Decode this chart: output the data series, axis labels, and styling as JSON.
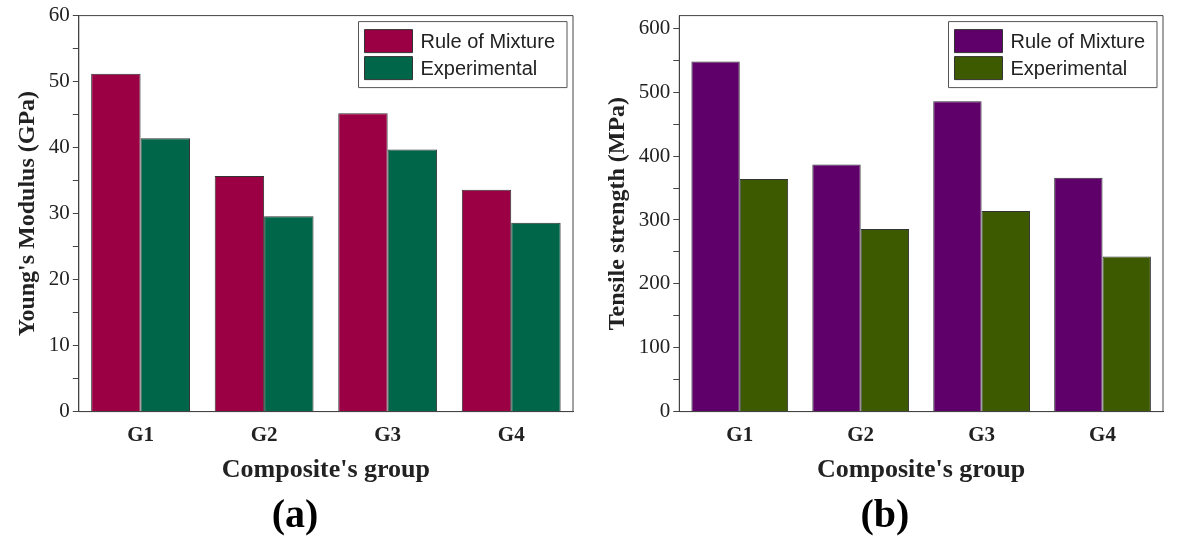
{
  "chart_data": [
    {
      "type": "bar",
      "xlabel": "Composite's group",
      "ylabel": "Young's Modulus (GPa)",
      "categories": [
        "G1",
        "G2",
        "G3",
        "G4"
      ],
      "series": [
        {
          "name": "Rule of Mixture",
          "color": "#9b0045",
          "values": [
            51.2,
            35.7,
            45.2,
            33.6
          ]
        },
        {
          "name": "Experimental",
          "color": "#00664a",
          "values": [
            41.4,
            29.6,
            39.7,
            28.6
          ]
        }
      ],
      "ylim": [
        0,
        60
      ],
      "yticks": [
        0,
        {
          "value": 5,
          "label": null
        },
        10,
        {
          "value": 15,
          "label": null
        },
        20,
        {
          "value": 25,
          "label": null
        },
        30,
        {
          "value": 35,
          "label": null
        },
        40,
        {
          "value": 45,
          "label": null
        },
        50,
        {
          "value": 55,
          "label": null
        },
        60
      ],
      "grid": false,
      "legend": "top right",
      "annotations": [
        "(a)"
      ]
    },
    {
      "type": "bar",
      "xlabel": "Composite's group",
      "ylabel": "Tensile strength (MPa)",
      "categories": [
        "G1",
        "G2",
        "G3",
        "G4"
      ],
      "series": [
        {
          "name": "Rule of Mixture",
          "color": "#5f006a",
          "values": [
            548,
            387,
            486,
            366
          ]
        },
        {
          "name": "Experimental",
          "color": "#3d5a00",
          "values": [
            364,
            286,
            314,
            243
          ]
        }
      ],
      "ylim": [
        0,
        620
      ],
      "yticks": [
        0,
        {
          "value": 50,
          "label": null
        },
        100,
        {
          "value": 150,
          "label": null
        },
        200,
        {
          "value": 250,
          "label": null
        },
        300,
        {
          "value": 350,
          "label": null
        },
        400,
        {
          "value": 450,
          "label": null
        },
        500,
        {
          "value": 550,
          "label": null
        },
        600
      ],
      "grid": false,
      "legend": "top right",
      "annotations": [
        "(b)"
      ]
    }
  ]
}
